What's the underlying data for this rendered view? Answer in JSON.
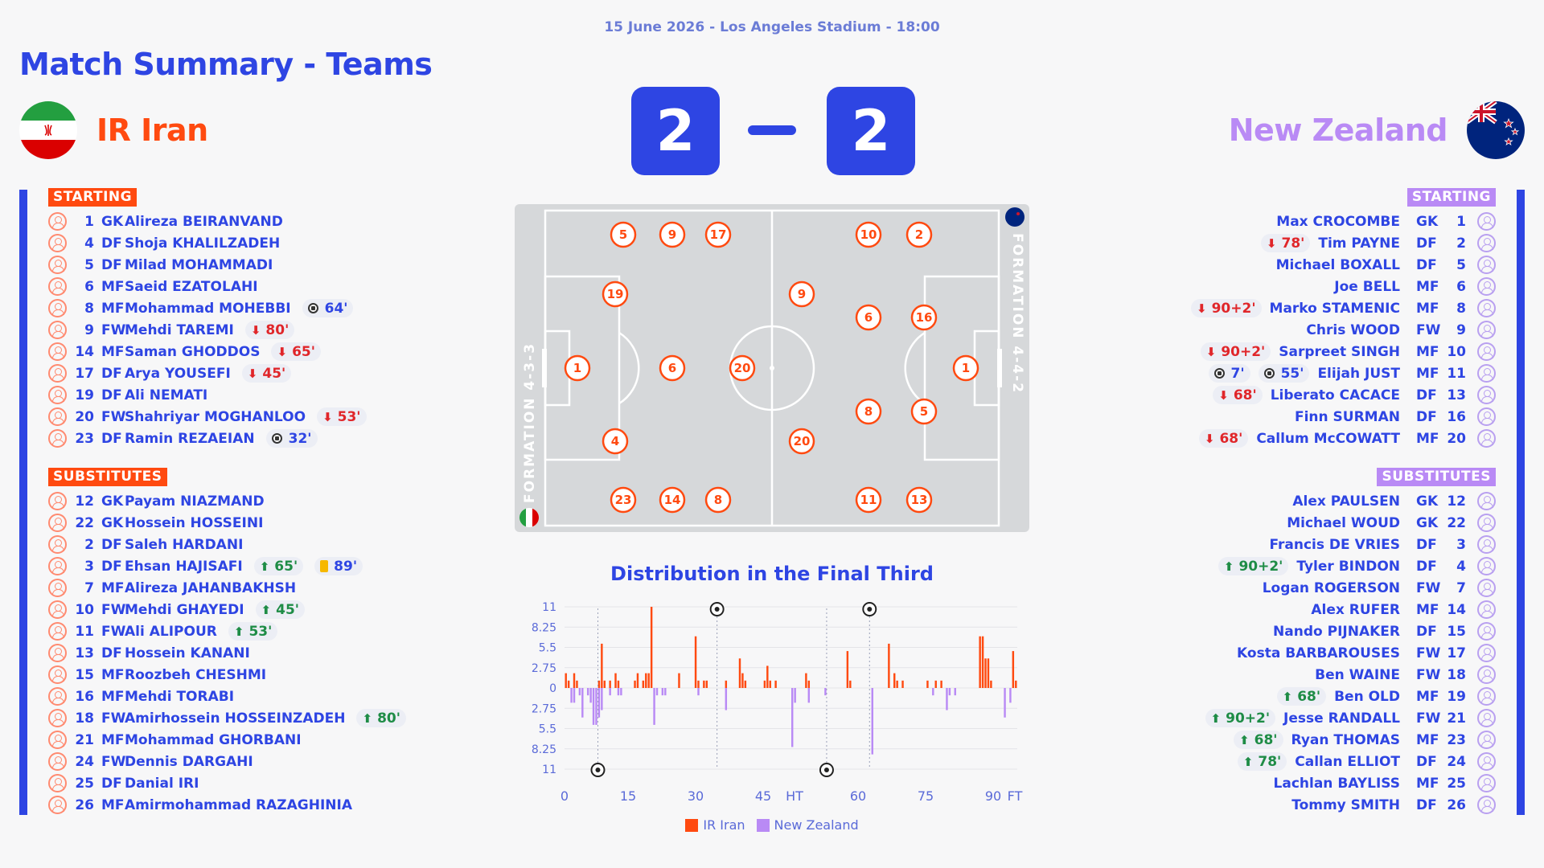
{
  "header": {
    "subtitle": "15 June 2026 - Los Angeles Stadium - 18:00",
    "title": "Match Summary - Teams"
  },
  "home": {
    "name": "IR Iran",
    "score": "2",
    "color": "#ff4a10",
    "starting_label": "STARTING",
    "subs_label": "SUBSTITUTES",
    "formation": "FORMATION 4-3-3",
    "starting": [
      {
        "num": "1",
        "pos": "GK",
        "name": "Alireza BEIRANVAND",
        "events": []
      },
      {
        "num": "4",
        "pos": "DF",
        "name": "Shoja KHALILZADEH",
        "events": []
      },
      {
        "num": "5",
        "pos": "DF",
        "name": "Milad MOHAMMADI",
        "events": []
      },
      {
        "num": "6",
        "pos": "MF",
        "name": "Saeid EZATOLAHI",
        "events": []
      },
      {
        "num": "8",
        "pos": "MF",
        "name": "Mohammad MOHEBBI",
        "events": [
          {
            "type": "goal",
            "text": "64'"
          }
        ]
      },
      {
        "num": "9",
        "pos": "FW",
        "name": "Mehdi TAREMI",
        "events": [
          {
            "type": "off",
            "text": "80'"
          }
        ]
      },
      {
        "num": "14",
        "pos": "MF",
        "name": "Saman GHODDOS",
        "events": [
          {
            "type": "off",
            "text": "65'"
          }
        ]
      },
      {
        "num": "17",
        "pos": "DF",
        "name": "Arya YOUSEFI",
        "events": [
          {
            "type": "off",
            "text": "45'"
          }
        ]
      },
      {
        "num": "19",
        "pos": "DF",
        "name": "Ali NEMATI",
        "events": []
      },
      {
        "num": "20",
        "pos": "FW",
        "name": "Shahriyar MOGHANLOO",
        "events": [
          {
            "type": "off",
            "text": "53'"
          }
        ]
      },
      {
        "num": "23",
        "pos": "DF",
        "name": "Ramin REZAEIAN",
        "events": [
          {
            "type": "goal",
            "text": "32'"
          }
        ]
      }
    ],
    "subs": [
      {
        "num": "12",
        "pos": "GK",
        "name": "Payam NIAZMAND",
        "events": []
      },
      {
        "num": "22",
        "pos": "GK",
        "name": "Hossein HOSSEINI",
        "events": []
      },
      {
        "num": "2",
        "pos": "DF",
        "name": "Saleh HARDANI",
        "events": []
      },
      {
        "num": "3",
        "pos": "DF",
        "name": "Ehsan HAJISAFI",
        "events": [
          {
            "type": "on",
            "text": "65'"
          },
          {
            "type": "yellow",
            "text": "89'"
          }
        ]
      },
      {
        "num": "7",
        "pos": "MF",
        "name": "Alireza JAHANBAKHSH",
        "events": []
      },
      {
        "num": "10",
        "pos": "FW",
        "name": "Mehdi GHAYEDI",
        "events": [
          {
            "type": "on",
            "text": "45'"
          }
        ]
      },
      {
        "num": "11",
        "pos": "FW",
        "name": "Ali ALIPOUR",
        "events": [
          {
            "type": "on",
            "text": "53'"
          }
        ]
      },
      {
        "num": "13",
        "pos": "DF",
        "name": "Hossein KANANI",
        "events": []
      },
      {
        "num": "15",
        "pos": "MF",
        "name": "Roozbeh CHESHMI",
        "events": []
      },
      {
        "num": "16",
        "pos": "MF",
        "name": "Mehdi TORABI",
        "events": []
      },
      {
        "num": "18",
        "pos": "FW",
        "name": "Amirhossein HOSSEINZADEH",
        "events": [
          {
            "type": "on",
            "text": "80'"
          }
        ]
      },
      {
        "num": "21",
        "pos": "MF",
        "name": "Mohammad GHORBANI",
        "events": []
      },
      {
        "num": "24",
        "pos": "FW",
        "name": "Dennis DARGAHI",
        "events": []
      },
      {
        "num": "25",
        "pos": "DF",
        "name": "Danial IRI",
        "events": []
      },
      {
        "num": "26",
        "pos": "MF",
        "name": "Amirmohammad RAZAGHINIA",
        "events": []
      }
    ],
    "pitch_numbers": [
      "5",
      "9",
      "17",
      "19",
      "1",
      "6",
      "20",
      "4",
      "23",
      "14",
      "8"
    ]
  },
  "away": {
    "name": "New Zealand",
    "score": "2",
    "color": "#b98af5",
    "starting_label": "STARTING",
    "subs_label": "SUBSTITUTES",
    "formation": "FORMATION 4-4-2",
    "starting": [
      {
        "num": "1",
        "pos": "GK",
        "name": "Max CROCOMBE",
        "events": []
      },
      {
        "num": "2",
        "pos": "DF",
        "name": "Tim PAYNE",
        "events": [
          {
            "type": "off",
            "text": "78'"
          }
        ]
      },
      {
        "num": "5",
        "pos": "DF",
        "name": "Michael BOXALL",
        "events": []
      },
      {
        "num": "6",
        "pos": "MF",
        "name": "Joe BELL",
        "events": []
      },
      {
        "num": "8",
        "pos": "MF",
        "name": "Marko STAMENIC",
        "events": [
          {
            "type": "off",
            "text": "90+2'"
          }
        ]
      },
      {
        "num": "9",
        "pos": "FW",
        "name": "Chris WOOD",
        "events": []
      },
      {
        "num": "10",
        "pos": "MF",
        "name": "Sarpreet SINGH",
        "events": [
          {
            "type": "off",
            "text": "90+2'"
          }
        ]
      },
      {
        "num": "11",
        "pos": "MF",
        "name": "Elijah JUST",
        "events": [
          {
            "type": "goal",
            "text": "55'"
          },
          {
            "type": "goal",
            "text": "7'"
          }
        ]
      },
      {
        "num": "13",
        "pos": "DF",
        "name": "Liberato CACACE",
        "events": [
          {
            "type": "off",
            "text": "68'"
          }
        ]
      },
      {
        "num": "16",
        "pos": "DF",
        "name": "Finn SURMAN",
        "events": []
      },
      {
        "num": "20",
        "pos": "MF",
        "name": "Callum McCOWATT",
        "events": [
          {
            "type": "off",
            "text": "68'"
          }
        ]
      }
    ],
    "subs": [
      {
        "num": "12",
        "pos": "GK",
        "name": "Alex PAULSEN",
        "events": []
      },
      {
        "num": "22",
        "pos": "GK",
        "name": "Michael WOUD",
        "events": []
      },
      {
        "num": "3",
        "pos": "DF",
        "name": "Francis DE VRIES",
        "events": []
      },
      {
        "num": "4",
        "pos": "DF",
        "name": "Tyler BINDON",
        "events": [
          {
            "type": "on",
            "text": "90+2'"
          }
        ]
      },
      {
        "num": "7",
        "pos": "FW",
        "name": "Logan ROGERSON",
        "events": []
      },
      {
        "num": "14",
        "pos": "MF",
        "name": "Alex RUFER",
        "events": []
      },
      {
        "num": "15",
        "pos": "DF",
        "name": "Nando PIJNAKER",
        "events": []
      },
      {
        "num": "17",
        "pos": "FW",
        "name": "Kosta BARBAROUSES",
        "events": []
      },
      {
        "num": "18",
        "pos": "FW",
        "name": "Ben WAINE",
        "events": []
      },
      {
        "num": "19",
        "pos": "MF",
        "name": "Ben OLD",
        "events": [
          {
            "type": "on",
            "text": "68'"
          }
        ]
      },
      {
        "num": "21",
        "pos": "FW",
        "name": "Jesse RANDALL",
        "events": [
          {
            "type": "on",
            "text": "90+2'"
          }
        ]
      },
      {
        "num": "23",
        "pos": "MF",
        "name": "Ryan THOMAS",
        "events": [
          {
            "type": "on",
            "text": "68'"
          }
        ]
      },
      {
        "num": "24",
        "pos": "DF",
        "name": "Callan ELLIOT",
        "events": [
          {
            "type": "on",
            "text": "78'"
          }
        ]
      },
      {
        "num": "25",
        "pos": "MF",
        "name": "Lachlan BAYLISS",
        "events": []
      },
      {
        "num": "26",
        "pos": "DF",
        "name": "Tommy SMITH",
        "events": []
      }
    ],
    "pitch_numbers": [
      "10",
      "2",
      "9",
      "6",
      "16",
      "1",
      "8",
      "5",
      "20",
      "11",
      "13"
    ]
  },
  "chart_data": {
    "type": "bar",
    "title": "Distribution in the Final Third",
    "x_ticks": [
      "0",
      "15",
      "30",
      "45",
      "HT",
      "60",
      "75",
      "90",
      "FT"
    ],
    "y_ticks": [
      "11",
      "8.25",
      "5.5",
      "2.75",
      "0",
      "2.75",
      "5.5",
      "8.25",
      "11"
    ],
    "ylim": [
      -11,
      11
    ],
    "legend": [
      "IR Iran",
      "New Zealand"
    ],
    "series": [
      {
        "name": "IR Iran",
        "color": "#ff4a10",
        "values": [
          2,
          1,
          0,
          2,
          1,
          0,
          0,
          0,
          0,
          0,
          0,
          0,
          1,
          6,
          1,
          0,
          1,
          0,
          2,
          1,
          0,
          0,
          0,
          0,
          0,
          1,
          2,
          0,
          1,
          2,
          2,
          11,
          0,
          0,
          0,
          0,
          0,
          0,
          0,
          0,
          0,
          2,
          0,
          0,
          0,
          0,
          0,
          7,
          1,
          0,
          1,
          1,
          0,
          0,
          0,
          0,
          0,
          0,
          1,
          0,
          0,
          0,
          0,
          4,
          2,
          1,
          0,
          0,
          0,
          0,
          0,
          0,
          1,
          3,
          1,
          0,
          1,
          0,
          0,
          0,
          0,
          0,
          0,
          0,
          0,
          0,
          0,
          2,
          1,
          0,
          0,
          0,
          0,
          0,
          0,
          0,
          0,
          0,
          0,
          0,
          0,
          0,
          5,
          1,
          0,
          0,
          0,
          0,
          0,
          0,
          0,
          0,
          0,
          0,
          0,
          0,
          0,
          6,
          0,
          2,
          1,
          0,
          1,
          0,
          0,
          0,
          0,
          0,
          0,
          0,
          0,
          1,
          0,
          0,
          1,
          0,
          1,
          0,
          0,
          0,
          0,
          0,
          0,
          0,
          0,
          0,
          0,
          0,
          0,
          0,
          7,
          7,
          4,
          4,
          1,
          0,
          0,
          0,
          0,
          0,
          0,
          0,
          5,
          1
        ]
      },
      {
        "name": "New Zealand",
        "color": "#b98af5",
        "values": [
          0,
          0,
          -2,
          -2,
          0,
          -1,
          -4,
          0,
          -1,
          -2,
          -5,
          -5,
          -4,
          -3,
          0,
          0,
          -1,
          0,
          0,
          -1,
          -1,
          0,
          0,
          0,
          0,
          0,
          0,
          0,
          0,
          0,
          0,
          0,
          -5,
          -1,
          0,
          -1,
          -1,
          0,
          0,
          0,
          0,
          0,
          0,
          0,
          0,
          0,
          0,
          0,
          -1,
          0,
          0,
          0,
          0,
          0,
          0,
          0,
          0,
          0,
          -3,
          0,
          0,
          0,
          0,
          0,
          0,
          0,
          0,
          0,
          0,
          0,
          0,
          0,
          0,
          0,
          0,
          0,
          0,
          0,
          0,
          0,
          0,
          0,
          -8,
          -2,
          0,
          0,
          0,
          0,
          -2,
          0,
          0,
          0,
          0,
          0,
          -1,
          0,
          0,
          0,
          0,
          0,
          0,
          0,
          0,
          0,
          0,
          0,
          0,
          0,
          0,
          0,
          0,
          -9,
          0,
          0,
          0,
          0,
          0,
          0,
          0,
          0,
          0,
          0,
          0,
          0,
          0,
          0,
          0,
          0,
          0,
          0,
          0,
          0,
          0,
          -1,
          0,
          0,
          0,
          0,
          -3,
          -1,
          0,
          -1,
          0,
          0,
          0,
          0,
          0,
          0,
          0,
          0,
          0,
          0,
          0,
          0,
          0,
          0,
          0,
          0,
          0,
          -4,
          0,
          -2,
          0,
          0,
          0,
          0,
          0,
          0,
          0,
          0
        ]
      }
    ],
    "goals": [
      {
        "team": "IR Iran",
        "minute": 32
      },
      {
        "team": "IR Iran",
        "minute": 64
      },
      {
        "team": "New Zealand",
        "minute": 7
      },
      {
        "team": "New Zealand",
        "minute": 55
      }
    ]
  }
}
